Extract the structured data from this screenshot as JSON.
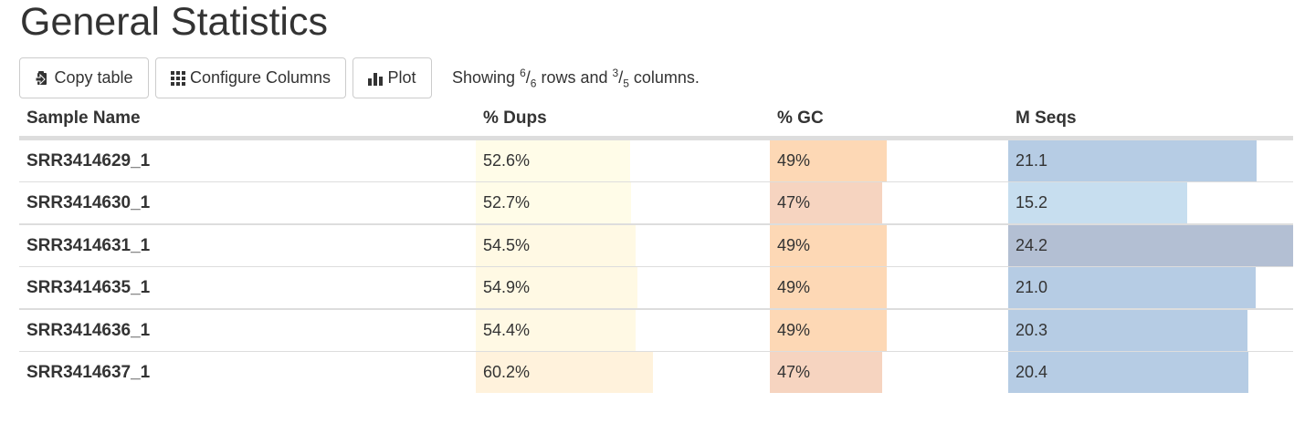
{
  "page": {
    "title": "General Statistics"
  },
  "toolbar": {
    "copy_label": "Copy table",
    "columns_label": "Configure Columns",
    "plot_label": "Plot",
    "showing": {
      "prefix": "Showing ",
      "rows_shown": "6",
      "rows_total": "6",
      "rows_word": " rows and ",
      "cols_shown": "3",
      "cols_total": "5",
      "cols_word": " columns."
    }
  },
  "table": {
    "headers": [
      "Sample Name",
      "% Dups",
      "% GC",
      "M Seqs"
    ],
    "rows": [
      {
        "name": "SRR3414629_1",
        "dups": "52.6%",
        "gc": "49%",
        "mseqs": "21.1"
      },
      {
        "name": "SRR3414630_1",
        "dups": "52.7%",
        "gc": "47%",
        "mseqs": "15.2"
      },
      {
        "name": "SRR3414631_1",
        "dups": "54.5%",
        "gc": "49%",
        "mseqs": "24.2"
      },
      {
        "name": "SRR3414635_1",
        "dups": "54.9%",
        "gc": "49%",
        "mseqs": "21.0"
      },
      {
        "name": "SRR3414636_1",
        "dups": "54.4%",
        "gc": "49%",
        "mseqs": "20.3"
      },
      {
        "name": "SRR3414637_1",
        "dups": "60.2%",
        "gc": "47%",
        "mseqs": "20.4"
      }
    ],
    "bars": {
      "dups": {
        "max": 100,
        "values": [
          52.6,
          52.7,
          54.5,
          54.9,
          54.4,
          60.2
        ],
        "colors": [
          "#fffce8",
          "#fffce8",
          "#fff9e4",
          "#fff9e4",
          "#fff9e4",
          "#fff2dc"
        ]
      },
      "gc": {
        "max": 100,
        "values": [
          49,
          47,
          49,
          49,
          49,
          47
        ],
        "colors": [
          "#fdd8b5",
          "#f6d4c0",
          "#fdd8b5",
          "#fdd8b5",
          "#fdd8b5",
          "#f6d4c0"
        ]
      },
      "mseqs": {
        "max": 24.2,
        "values": [
          21.1,
          15.2,
          24.2,
          21.0,
          20.3,
          20.4
        ],
        "colors": [
          "#b6cce4",
          "#c7deef",
          "#b3bfd3",
          "#b6cce4",
          "#b6cce4",
          "#b6cce4"
        ]
      }
    }
  }
}
